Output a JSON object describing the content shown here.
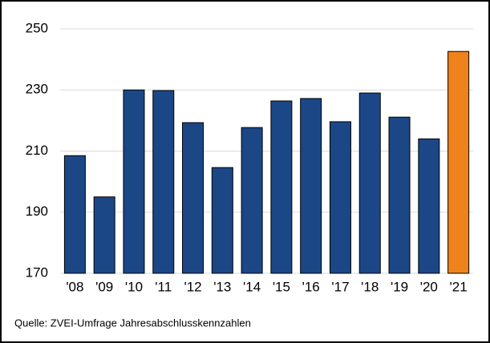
{
  "chart_data": {
    "type": "bar",
    "categories": [
      "'08",
      "'09",
      "'10",
      "'11",
      "'12",
      "'13",
      "'14",
      "'15",
      "'16",
      "'17",
      "'18",
      "'19",
      "'20",
      "'21"
    ],
    "values": [
      208.5,
      195,
      230,
      229.8,
      219.3,
      204.6,
      217.7,
      226.4,
      227.2,
      219.6,
      229,
      221.1,
      214,
      242.6
    ],
    "colors": [
      "#1b4786",
      "#1b4786",
      "#1b4786",
      "#1b4786",
      "#1b4786",
      "#1b4786",
      "#1b4786",
      "#1b4786",
      "#1b4786",
      "#1b4786",
      "#1b4786",
      "#1b4786",
      "#1b4786",
      "#f0821c"
    ],
    "ylim": [
      170,
      250
    ],
    "yticks": [
      170,
      190,
      210,
      230,
      250
    ],
    "grid": true,
    "source": "Quelle: ZVEI-Umfrage Jahresabschlusskennzahlen"
  }
}
